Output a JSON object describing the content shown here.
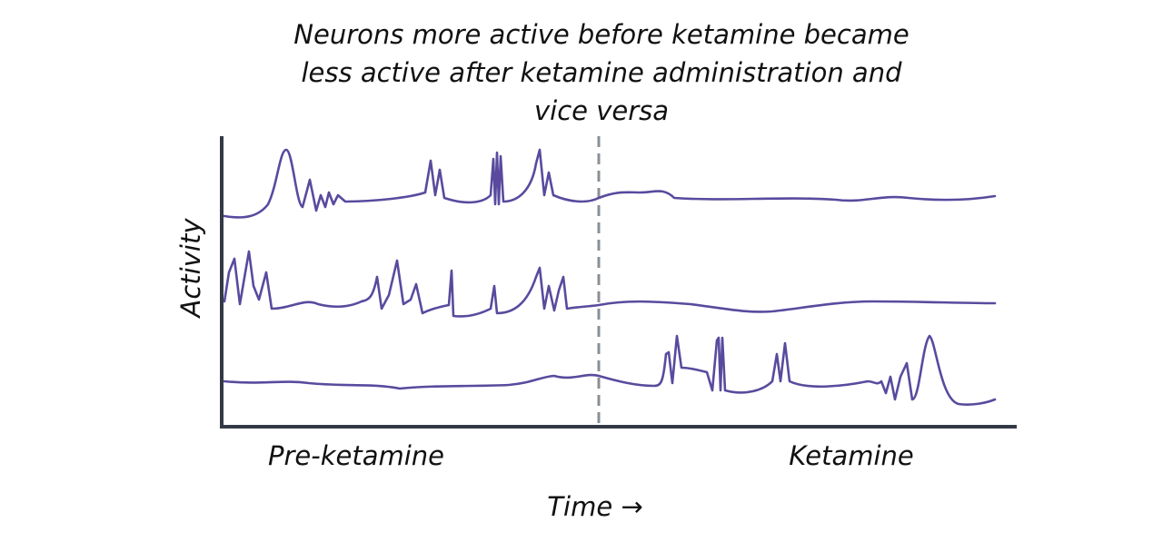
{
  "title": [
    "Neurons more active before ketamine became",
    "less active after ketamine administration and",
    "vice versa"
  ],
  "y_axis_label": "Activity",
  "x_axis_label": "Time →",
  "regions": [
    "Pre-ketamine",
    "Ketamine"
  ]
}
